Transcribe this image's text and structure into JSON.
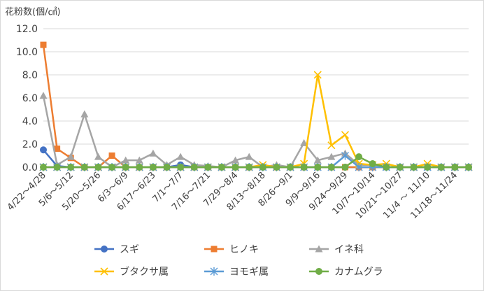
{
  "chart_data": {
    "type": "line",
    "ylabel": "花粉数(個/㎠)",
    "ylim": [
      0,
      12
    ],
    "yticks": [
      "0.0",
      "2.0",
      "4.0",
      "6.0",
      "8.0",
      "10.0",
      "12.0"
    ],
    "grid": true,
    "legend_position": "bottom",
    "x": [
      "4/22〜4/28",
      "4/29〜5/5",
      "5/6〜5/12",
      "5/13〜5/19",
      "5/20〜5/26",
      "5/27〜6/2",
      "6/3〜6/9",
      "6/10〜6/16",
      "6/17〜6/23",
      "6/24〜6/30",
      "7/1〜7/7",
      "7/8〜7/14",
      "7/16〜7/21",
      "7/22〜7/28",
      "7/29〜8/4",
      "8/5〜8/11",
      "8/13〜8/18",
      "8/19〜8/25",
      "8/26〜9/1",
      "9/2〜9/8",
      "9/9〜9/16",
      "9/17〜9/23",
      "9/24〜9/29",
      "9/30〜10/6",
      "10/7〜10/14",
      "10/15〜10/20",
      "10/21〜10/27",
      "10/28〜11/3",
      "11/4 〜 11/10",
      "11/11〜11/17",
      "11/18〜11/24",
      "11/25〜12/1"
    ],
    "x_shown_every": 2,
    "series": [
      {
        "name": "スギ",
        "color": "#4472C4",
        "marker": "circle",
        "values": [
          1.5,
          0.1,
          0.0,
          0.0,
          0.0,
          0.0,
          0.0,
          0.0,
          0.0,
          0.0,
          0.2,
          0.0,
          0.0,
          0.0,
          0.0,
          0.0,
          0.0,
          0.0,
          0.0,
          0.0,
          0.0,
          0.0,
          0.0,
          0.0,
          0.0,
          0.0,
          0.0,
          0.0,
          0.0,
          0.0,
          0.0,
          0.0
        ]
      },
      {
        "name": "ヒノキ",
        "color": "#ED7D31",
        "marker": "square",
        "values": [
          10.6,
          1.6,
          0.8,
          0.0,
          0.0,
          1.0,
          0.0,
          0.0,
          0.0,
          0.0,
          0.0,
          0.0,
          0.0,
          0.0,
          0.0,
          0.0,
          0.0,
          0.0,
          0.0,
          0.0,
          0.0,
          0.0,
          0.0,
          0.0,
          0.0,
          0.0,
          0.0,
          0.0,
          0.0,
          0.0,
          0.0,
          0.0
        ]
      },
      {
        "name": "イネ科",
        "color": "#A5A5A5",
        "marker": "triangle",
        "values": [
          6.2,
          0.2,
          0.9,
          4.6,
          0.9,
          0.0,
          0.6,
          0.6,
          1.2,
          0.2,
          0.9,
          0.2,
          0.1,
          0.0,
          0.6,
          0.9,
          0.0,
          0.2,
          0.0,
          2.1,
          0.6,
          0.9,
          1.2,
          0.2,
          0.2,
          0.0,
          0.0,
          0.0,
          0.0,
          0.0,
          0.0,
          0.0
        ]
      },
      {
        "name": "ブタクサ属",
        "color": "#FFC000",
        "marker": "x",
        "values": [
          0.0,
          0.0,
          0.0,
          0.0,
          0.0,
          0.0,
          0.0,
          0.0,
          0.0,
          0.0,
          0.0,
          0.0,
          0.0,
          0.0,
          0.0,
          0.0,
          0.2,
          0.0,
          0.0,
          0.3,
          8.0,
          1.9,
          2.8,
          0.3,
          0.2,
          0.3,
          0.0,
          0.0,
          0.3,
          0.0,
          0.0,
          0.0
        ]
      },
      {
        "name": "ヨモギ属",
        "color": "#5B9BD5",
        "marker": "star",
        "values": [
          0.0,
          0.0,
          0.0,
          0.0,
          0.0,
          0.0,
          0.0,
          0.0,
          0.0,
          0.0,
          0.0,
          0.0,
          0.0,
          0.0,
          0.0,
          0.0,
          0.0,
          0.0,
          0.0,
          0.0,
          0.0,
          0.0,
          1.0,
          0.0,
          0.0,
          0.0,
          0.0,
          0.0,
          0.0,
          0.0,
          0.0,
          0.0
        ]
      },
      {
        "name": "カナムグラ",
        "color": "#70AD47",
        "marker": "circle",
        "values": [
          0.0,
          0.0,
          0.0,
          0.0,
          0.0,
          0.0,
          0.0,
          0.0,
          0.0,
          0.0,
          0.0,
          0.0,
          0.0,
          0.0,
          0.0,
          0.0,
          0.0,
          0.0,
          0.0,
          0.0,
          0.0,
          0.0,
          0.0,
          0.9,
          0.3,
          0.0,
          0.0,
          0.0,
          0.0,
          0.0,
          0.0,
          0.0
        ]
      }
    ]
  }
}
